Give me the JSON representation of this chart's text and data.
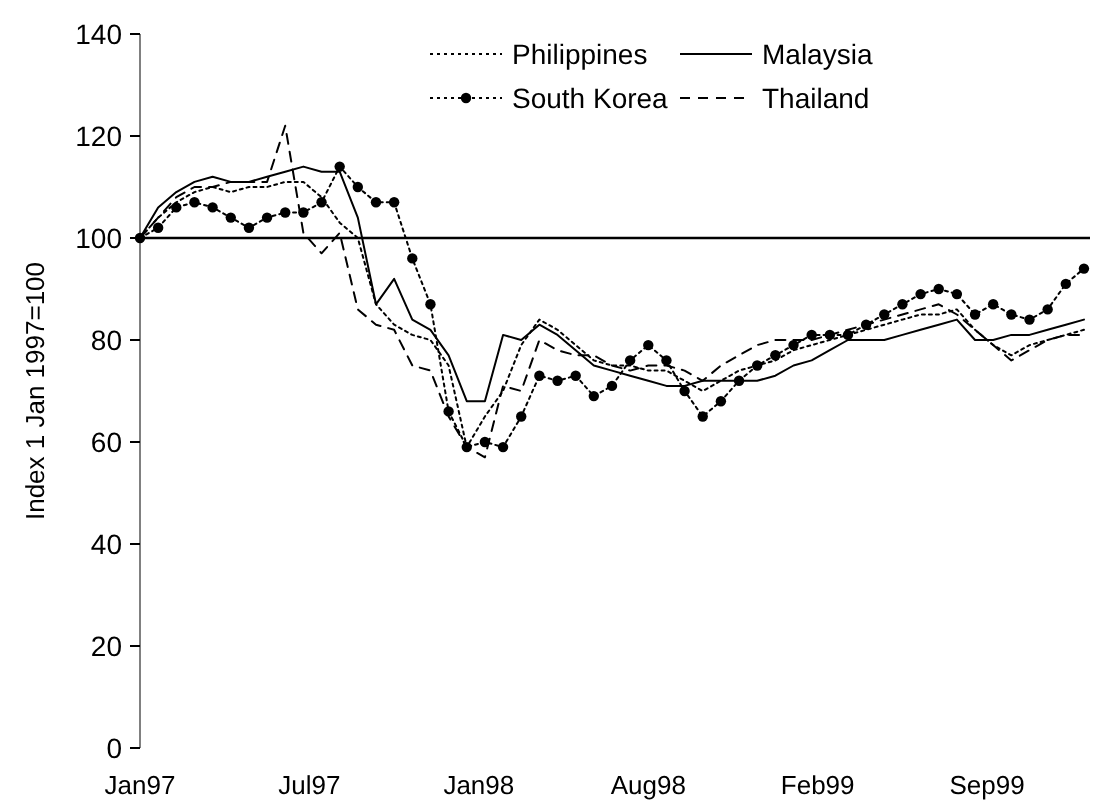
{
  "chart_data": {
    "type": "line",
    "ylabel": "Index 1 Jan 1997=100",
    "xlim": [
      "1997-01-01",
      "2000-01-05"
    ],
    "xticks": [
      {
        "value": "1997-01-01",
        "label": "Jan97"
      },
      {
        "value": "1997-07-16",
        "label": "Jul97"
      },
      {
        "value": "1998-01-28",
        "label": "Jan98"
      },
      {
        "value": "1998-08-12",
        "label": "Aug98"
      },
      {
        "value": "1999-02-24",
        "label": "Feb99"
      },
      {
        "value": "1999-09-08",
        "label": "Sep99"
      }
    ],
    "ylim": [
      0,
      140
    ],
    "yticks": [
      0,
      20,
      40,
      60,
      80,
      100,
      120,
      140
    ],
    "grid": false,
    "legend": "top",
    "ref_lines": [
      {
        "axis": "y",
        "value": 100,
        "color": "#000000",
        "line_style": "solid"
      }
    ],
    "x": [
      "1997-01-01",
      "1997-01-22",
      "1997-02-12",
      "1997-03-05",
      "1997-03-26",
      "1997-04-16",
      "1997-05-07",
      "1997-05-28",
      "1997-06-18",
      "1997-07-09",
      "1997-07-30",
      "1997-08-20",
      "1997-09-10",
      "1997-10-01",
      "1997-10-22",
      "1997-11-12",
      "1997-12-03",
      "1997-12-24",
      "1998-01-14",
      "1998-02-04",
      "1998-02-25",
      "1998-03-18",
      "1998-04-08",
      "1998-04-29",
      "1998-05-20",
      "1998-06-10",
      "1998-07-01",
      "1998-07-22",
      "1998-08-12",
      "1998-09-02",
      "1998-09-23",
      "1998-10-14",
      "1998-11-04",
      "1998-11-25",
      "1998-12-16",
      "1999-01-06",
      "1999-01-27",
      "1999-02-17",
      "1999-03-10",
      "1999-03-31",
      "1999-04-21",
      "1999-05-12",
      "1999-06-02",
      "1999-06-23",
      "1999-07-14",
      "1999-08-04",
      "1999-08-25",
      "1999-09-15",
      "1999-10-06",
      "1999-10-27",
      "1999-11-17",
      "1999-12-08",
      "1999-12-29"
    ],
    "series": [
      {
        "name": "Philippines",
        "color": "#000000",
        "line_style": "dotted",
        "marker": "none",
        "values": [
          100,
          104,
          107,
          109,
          110,
          109,
          110,
          110,
          111,
          111,
          108,
          103,
          100,
          87,
          83,
          81,
          80,
          75,
          59,
          65,
          70,
          79,
          84,
          82,
          79,
          76,
          75,
          75,
          74,
          74,
          72,
          70,
          72,
          74,
          75,
          76,
          78,
          79,
          80,
          81,
          82,
          83,
          84,
          85,
          85,
          86,
          82,
          79,
          77,
          79,
          80,
          81,
          82
        ]
      },
      {
        "name": "Malaysia",
        "color": "#000000",
        "line_style": "solid",
        "marker": "none",
        "values": [
          100,
          106,
          109,
          111,
          112,
          111,
          111,
          112,
          113,
          114,
          113,
          113,
          104,
          87,
          92,
          84,
          82,
          77,
          68,
          68,
          81,
          80,
          83,
          81,
          78,
          75,
          74,
          73,
          72,
          71,
          71,
          72,
          72,
          72,
          72,
          73,
          75,
          76,
          78,
          80,
          80,
          80,
          81,
          82,
          83,
          84,
          80,
          80,
          81,
          81,
          82,
          83,
          84
        ]
      },
      {
        "name": "South Korea",
        "color": "#000000",
        "line_style": "dotted",
        "marker": "circle",
        "values": [
          100,
          102,
          106,
          107,
          106,
          104,
          102,
          104,
          105,
          105,
          107,
          114,
          110,
          107,
          107,
          96,
          87,
          66,
          59,
          60,
          59,
          65,
          73,
          72,
          73,
          69,
          71,
          76,
          79,
          76,
          70,
          65,
          68,
          72,
          75,
          77,
          79,
          81,
          81,
          81,
          83,
          85,
          87,
          89,
          90,
          89,
          85,
          87,
          85,
          84,
          86,
          91,
          94
        ]
      },
      {
        "name": "Thailand",
        "color": "#000000",
        "line_style": "dashed",
        "marker": "none",
        "values": [
          100,
          104,
          108,
          110,
          110,
          111,
          111,
          111,
          122,
          101,
          97,
          101,
          86,
          83,
          82,
          75,
          74,
          65,
          59,
          57,
          71,
          70,
          80,
          78,
          77,
          77,
          75,
          74,
          75,
          75,
          74,
          72,
          75,
          77,
          79,
          80,
          80,
          80,
          81,
          82,
          83,
          84,
          85,
          86,
          87,
          85,
          82,
          79,
          76,
          78,
          80,
          81,
          81
        ]
      }
    ]
  }
}
